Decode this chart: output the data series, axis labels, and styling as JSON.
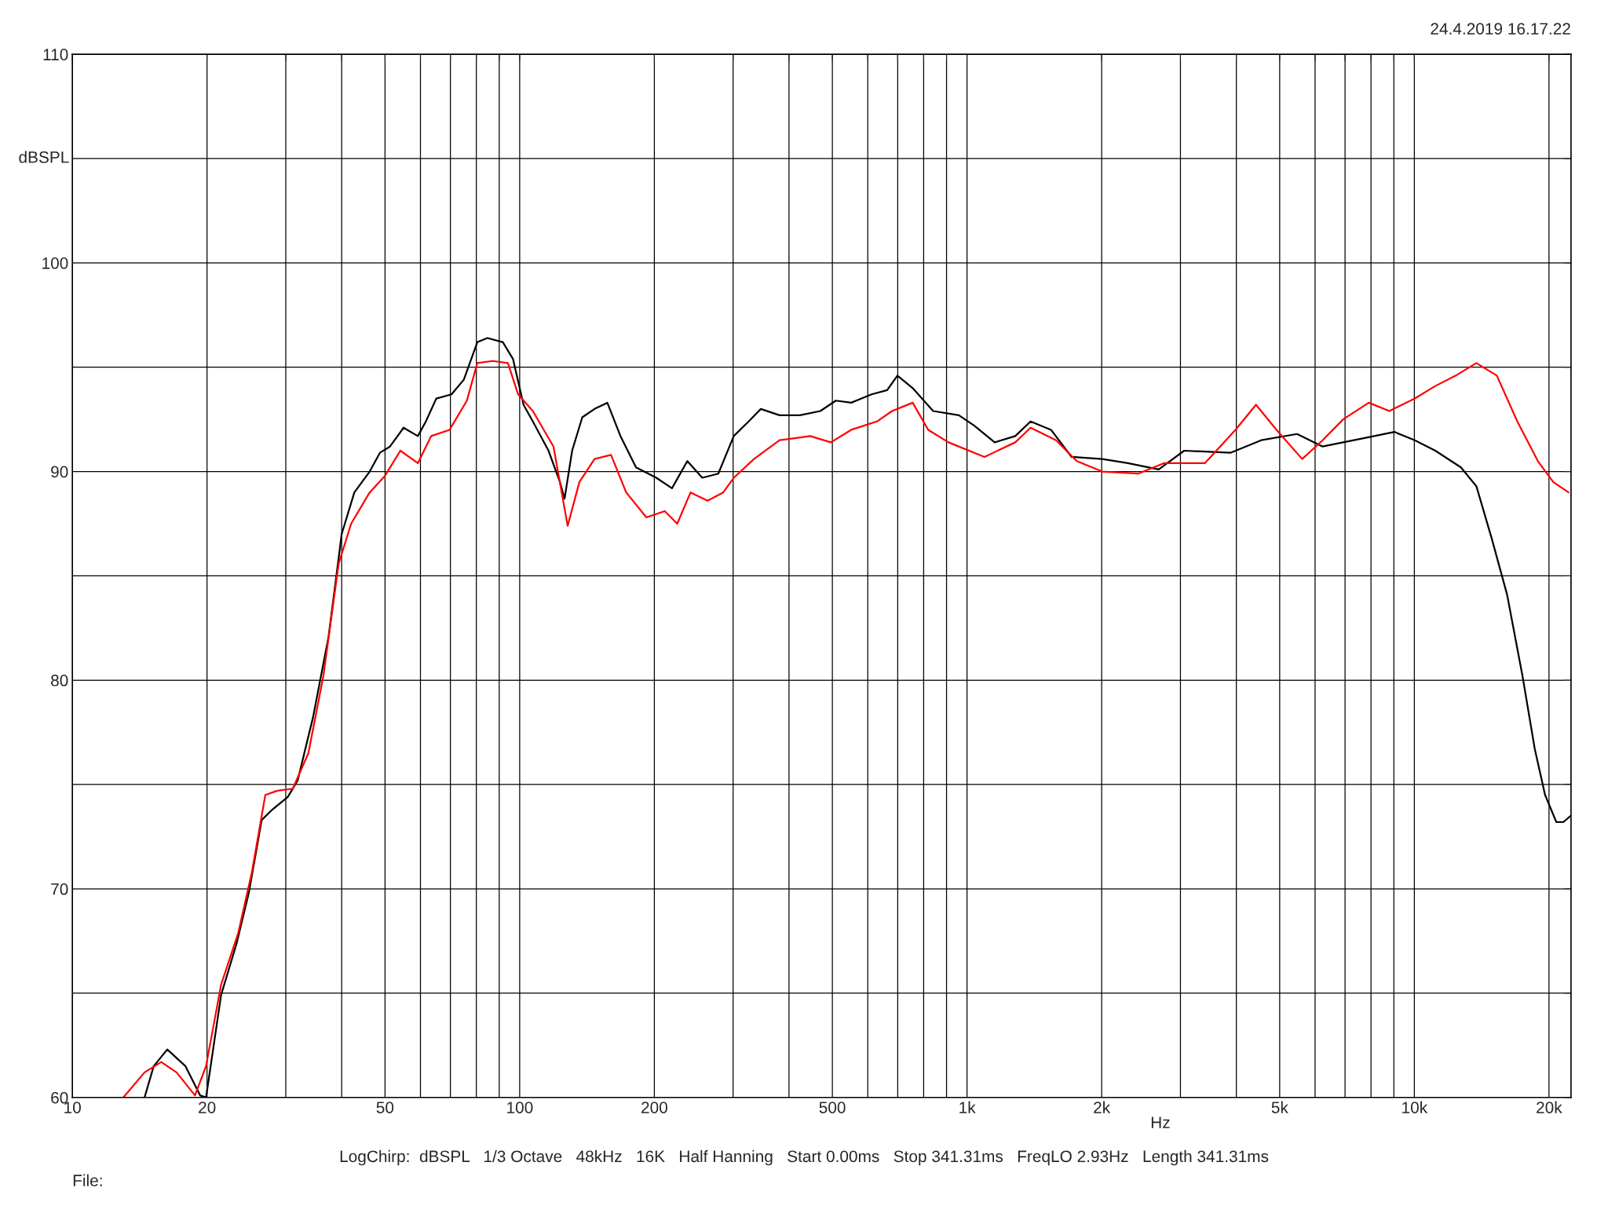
{
  "chart_data": {
    "type": "line",
    "xlabel": "Hz",
    "ylabel": "dBSPL",
    "log": "x",
    "grid": true,
    "legend": false,
    "line_style": "solid",
    "marker": "none",
    "xlim": [
      10,
      22400
    ],
    "ylim": [
      60,
      110
    ],
    "xticks": [
      10,
      20,
      {
        "value": 30,
        "label": null
      },
      {
        "value": 40,
        "label": null
      },
      50,
      {
        "value": 60,
        "label": null
      },
      {
        "value": 70,
        "label": null
      },
      {
        "value": 80,
        "label": null
      },
      {
        "value": 90,
        "label": null
      },
      100,
      200,
      {
        "value": 300,
        "label": null
      },
      {
        "value": 400,
        "label": null
      },
      500,
      {
        "value": 600,
        "label": null
      },
      {
        "value": 700,
        "label": null
      },
      {
        "value": 800,
        "label": null
      },
      {
        "value": 900,
        "label": null
      },
      {
        "value": 1000,
        "label": "1k"
      },
      {
        "value": 2000,
        "label": "2k"
      },
      {
        "value": 3000,
        "label": null
      },
      {
        "value": 4000,
        "label": null
      },
      {
        "value": 5000,
        "label": "5k"
      },
      {
        "value": 6000,
        "label": null
      },
      {
        "value": 7000,
        "label": null
      },
      {
        "value": 8000,
        "label": null
      },
      {
        "value": 9000,
        "label": null
      },
      {
        "value": 10000,
        "label": "10k"
      },
      {
        "value": 20000,
        "label": "20k"
      }
    ],
    "yticks": [
      60,
      {
        "value": 65,
        "label": null
      },
      70,
      {
        "value": 75,
        "label": null
      },
      80,
      {
        "value": 85,
        "label": null
      },
      90,
      {
        "value": 95,
        "label": null
      },
      100,
      {
        "value": 105,
        "label": null
      },
      110
    ],
    "annotations": [
      "24.4.2019 16.17.22",
      "LogChirp:  dBSPL   1/3 Octave   48kHz   16K   Half Hanning   Start 0.00ms   Stop 341.31ms   FreqLO 2.93Hz   Length 341.31ms",
      "File:"
    ],
    "series": [
      {
        "color": "#000000",
        "x": [
          14.5,
          15.2,
          16.3,
          17.9,
          19.3,
          19.9,
          21.5,
          23.3,
          24.8,
          26.5,
          28.0,
          30.3,
          31.9,
          34.5,
          37.4,
          40.0,
          42.7,
          46.2,
          48.7,
          51.3,
          55.0,
          59.2,
          61.7,
          65.1,
          70.4,
          75.0,
          80.4,
          84.7,
          91.7,
          96.6,
          102,
          107,
          116,
          123,
          126,
          131,
          138,
          147,
          157,
          168,
          182,
          202,
          219,
          237,
          256,
          278,
          301,
          325,
          346,
          381,
          423,
          470,
          509,
          551,
          612,
          663,
          699,
          756,
          840,
          959,
          1038,
          1153,
          1282,
          1387,
          1541,
          1713,
          2006,
          2289,
          2682,
          3059,
          3880,
          4546,
          5468,
          6237,
          7703,
          9024,
          10025,
          11140,
          12710,
          13760,
          14890,
          16120,
          17450,
          18590,
          19600,
          20770,
          21540,
          22360
        ],
        "values": [
          60.0,
          61.5,
          62.3,
          61.5,
          60.1,
          60.0,
          64.9,
          67.4,
          69.8,
          73.3,
          73.8,
          74.4,
          75.2,
          78.2,
          82.1,
          87.0,
          89.0,
          90.0,
          90.9,
          91.2,
          92.1,
          91.7,
          92.4,
          93.5,
          93.7,
          94.4,
          96.2,
          96.4,
          96.2,
          95.4,
          93.2,
          92.4,
          91.0,
          89.5,
          88.7,
          91.0,
          92.6,
          93.0,
          93.3,
          91.7,
          90.2,
          89.7,
          89.2,
          90.5,
          89.7,
          89.9,
          91.7,
          92.4,
          93.0,
          92.7,
          92.7,
          92.9,
          93.4,
          93.3,
          93.7,
          93.9,
          94.6,
          94.0,
          92.9,
          92.7,
          92.2,
          91.4,
          91.7,
          92.4,
          92.0,
          90.7,
          90.6,
          90.4,
          90.1,
          91.0,
          90.9,
          91.5,
          91.8,
          91.2,
          91.6,
          91.9,
          91.5,
          91.0,
          90.2,
          89.3,
          86.8,
          84.1,
          80.2,
          76.7,
          74.5,
          73.2,
          73.2,
          73.5
        ]
      },
      {
        "color": "#ff0000",
        "x": [
          13.0,
          14.5,
          15.8,
          17.1,
          18.8,
          19.9,
          21.5,
          23.5,
          25.2,
          27.0,
          28.7,
          31.1,
          33.7,
          36.4,
          39.4,
          42.0,
          46.2,
          50.0,
          54.1,
          59.2,
          63.4,
          69.7,
          76.2,
          80.4,
          87.0,
          94.1,
          99.2,
          107,
          119,
          128,
          136,
          147,
          160,
          173,
          192,
          211,
          225,
          241,
          263,
          285,
          301,
          334,
          381,
          446,
          496,
          551,
          629,
          680,
          756,
          819,
          909,
          1094,
          1282,
          1387,
          1582,
          1759,
          2006,
          2413,
          2754,
          3401,
          3982,
          4426,
          4919,
          5614,
          6237,
          6931,
          7910,
          8791,
          10025,
          11140,
          12380,
          13760,
          15290,
          16990,
          18890,
          20440,
          22120
        ],
        "values": [
          60.0,
          61.2,
          61.7,
          61.2,
          60.1,
          61.5,
          65.4,
          67.9,
          70.8,
          74.5,
          74.7,
          74.8,
          76.5,
          80.2,
          85.6,
          87.5,
          89.0,
          89.8,
          91.0,
          90.4,
          91.7,
          92.0,
          93.4,
          95.2,
          95.3,
          95.2,
          93.7,
          92.9,
          91.2,
          87.4,
          89.5,
          90.6,
          90.8,
          89.0,
          87.8,
          88.1,
          87.5,
          89.0,
          88.6,
          89.0,
          89.7,
          90.6,
          91.5,
          91.7,
          91.4,
          92.0,
          92.4,
          92.9,
          93.3,
          92.0,
          91.4,
          90.7,
          91.4,
          92.1,
          91.5,
          90.5,
          90.0,
          89.9,
          90.4,
          90.4,
          92.0,
          93.2,
          92.0,
          90.6,
          91.5,
          92.5,
          93.3,
          92.9,
          93.5,
          94.1,
          94.6,
          95.2,
          94.6,
          92.4,
          90.5,
          89.5,
          89.0
        ]
      }
    ]
  }
}
